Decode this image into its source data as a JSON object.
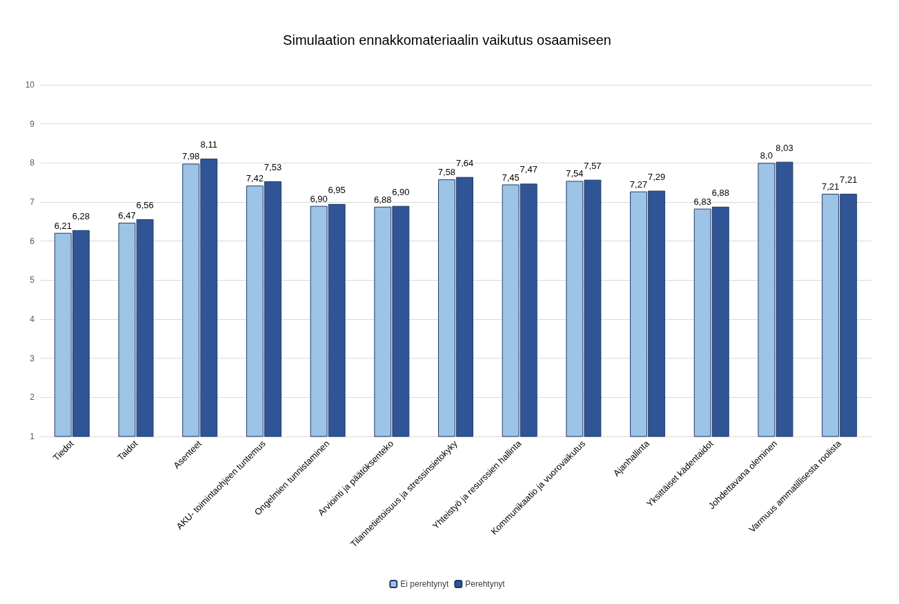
{
  "chart_data": {
    "type": "bar",
    "title": "Simulaation ennakkomateriaalin vaikutus osaamiseen",
    "categories": [
      "Tiedot",
      "Taidot",
      "Asenteet",
      "AKU- toimintaohjeen tuntemus",
      "Ongelmien tunnistaminen",
      "Arviointi ja päätöksenteko",
      "Tilannetietoisuus ja stressinsietokyky",
      "Yhteistyö ja resurssien hallinta",
      "Kommunikaatio ja vuorovaikutus",
      "Ajanhallinta",
      "Yksittäiset kädentaidot",
      "Johdettavana oleminen",
      "Varmuus ammatillisesta roolista"
    ],
    "series": [
      {
        "name": "Ei perehtynyt",
        "color": "#9dc3e6",
        "values": [
          6.21,
          6.47,
          7.98,
          7.42,
          6.9,
          6.88,
          7.58,
          7.45,
          7.54,
          7.27,
          6.83,
          8.0,
          7.21
        ],
        "value_labels": [
          "6,21",
          "6,47",
          "7,98",
          "7,42",
          "6,90",
          "6,88",
          "7,58",
          "7,45",
          "7,54",
          "7,27",
          "6,83",
          "8,0",
          "7,21"
        ]
      },
      {
        "name": "Perehtynyt",
        "color": "#2f5597",
        "values": [
          6.28,
          6.56,
          8.11,
          7.53,
          6.95,
          6.9,
          7.64,
          7.47,
          7.57,
          7.29,
          6.88,
          8.03,
          7.21
        ],
        "value_labels": [
          "6,28",
          "6,56",
          "8,11",
          "7,53",
          "6,95",
          "6,90",
          "7,64",
          "7,47",
          "7,57",
          "7,29",
          "6,88",
          "8,03",
          "7,21"
        ]
      }
    ],
    "ylim": [
      1,
      10
    ],
    "yticks": [
      1,
      2,
      3,
      4,
      5,
      6,
      7,
      8,
      9,
      10
    ],
    "grid": "y",
    "legend": "bottom"
  }
}
